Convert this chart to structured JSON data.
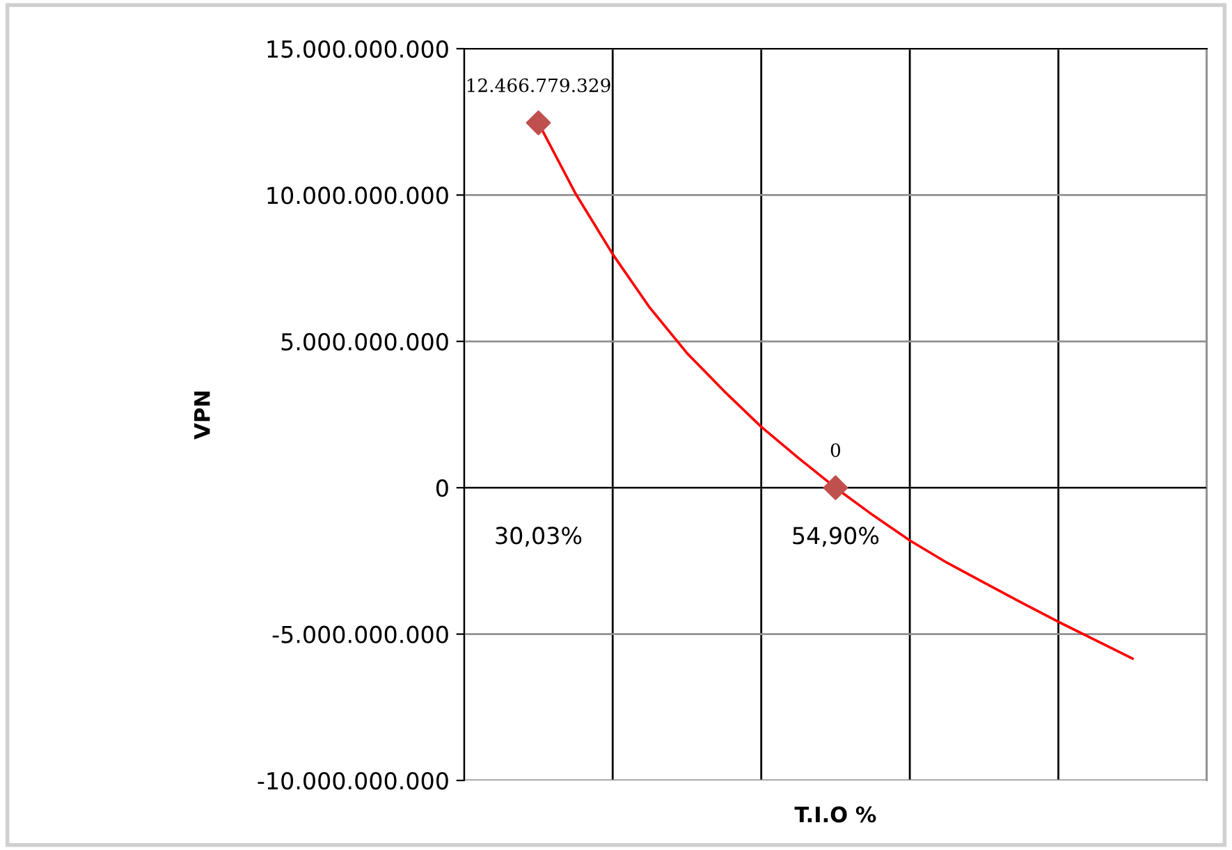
{
  "chart_data": {
    "type": "line",
    "xlabel": "T.I.O %",
    "ylabel": "VPN",
    "categories": [
      null,
      null,
      null,
      null,
      null,
      null,
      null,
      null,
      null,
      null,
      null,
      null,
      null,
      null,
      null,
      null,
      null
    ],
    "ylim": [
      -10000000000,
      15000000000
    ],
    "yticks": [
      {
        "value": -10000000000,
        "label": "-10.000.000.000"
      },
      {
        "value": -5000000000,
        "label": "-5.000.000.000"
      },
      {
        "value": 0,
        "label": "0"
      },
      {
        "value": 5000000000,
        "label": "5.000.000.000"
      },
      {
        "value": 10000000000,
        "label": "10.000.000.000"
      },
      {
        "value": 15000000000,
        "label": "15.000.000.000"
      }
    ],
    "grid": true,
    "legend": false,
    "series": [
      {
        "type": "line",
        "color": "#ff0000",
        "marker": "none",
        "line_style": "solid",
        "values": [
          12466779329,
          10050000000,
          7980000000,
          6150000000,
          4600000000,
          3300000000,
          2080000000,
          1020000000,
          0,
          -930000000,
          -1800000000,
          -2560000000,
          -3240000000,
          -3920000000,
          -4580000000,
          -5210000000,
          -5840000000
        ]
      },
      {
        "type": "scatter",
        "color": "#c0504d",
        "marker": "diamond",
        "values": [
          12466779329,
          null,
          null,
          null,
          null,
          null,
          null,
          null,
          0,
          null,
          null,
          null,
          null,
          null,
          null,
          null,
          null
        ],
        "value_labels": [
          "12.466.779.329",
          null,
          null,
          null,
          null,
          null,
          null,
          null,
          "0",
          null,
          null,
          null,
          null,
          null,
          null,
          null,
          null
        ]
      }
    ],
    "annotations": [
      "30,03%",
      "54,90%"
    ]
  }
}
